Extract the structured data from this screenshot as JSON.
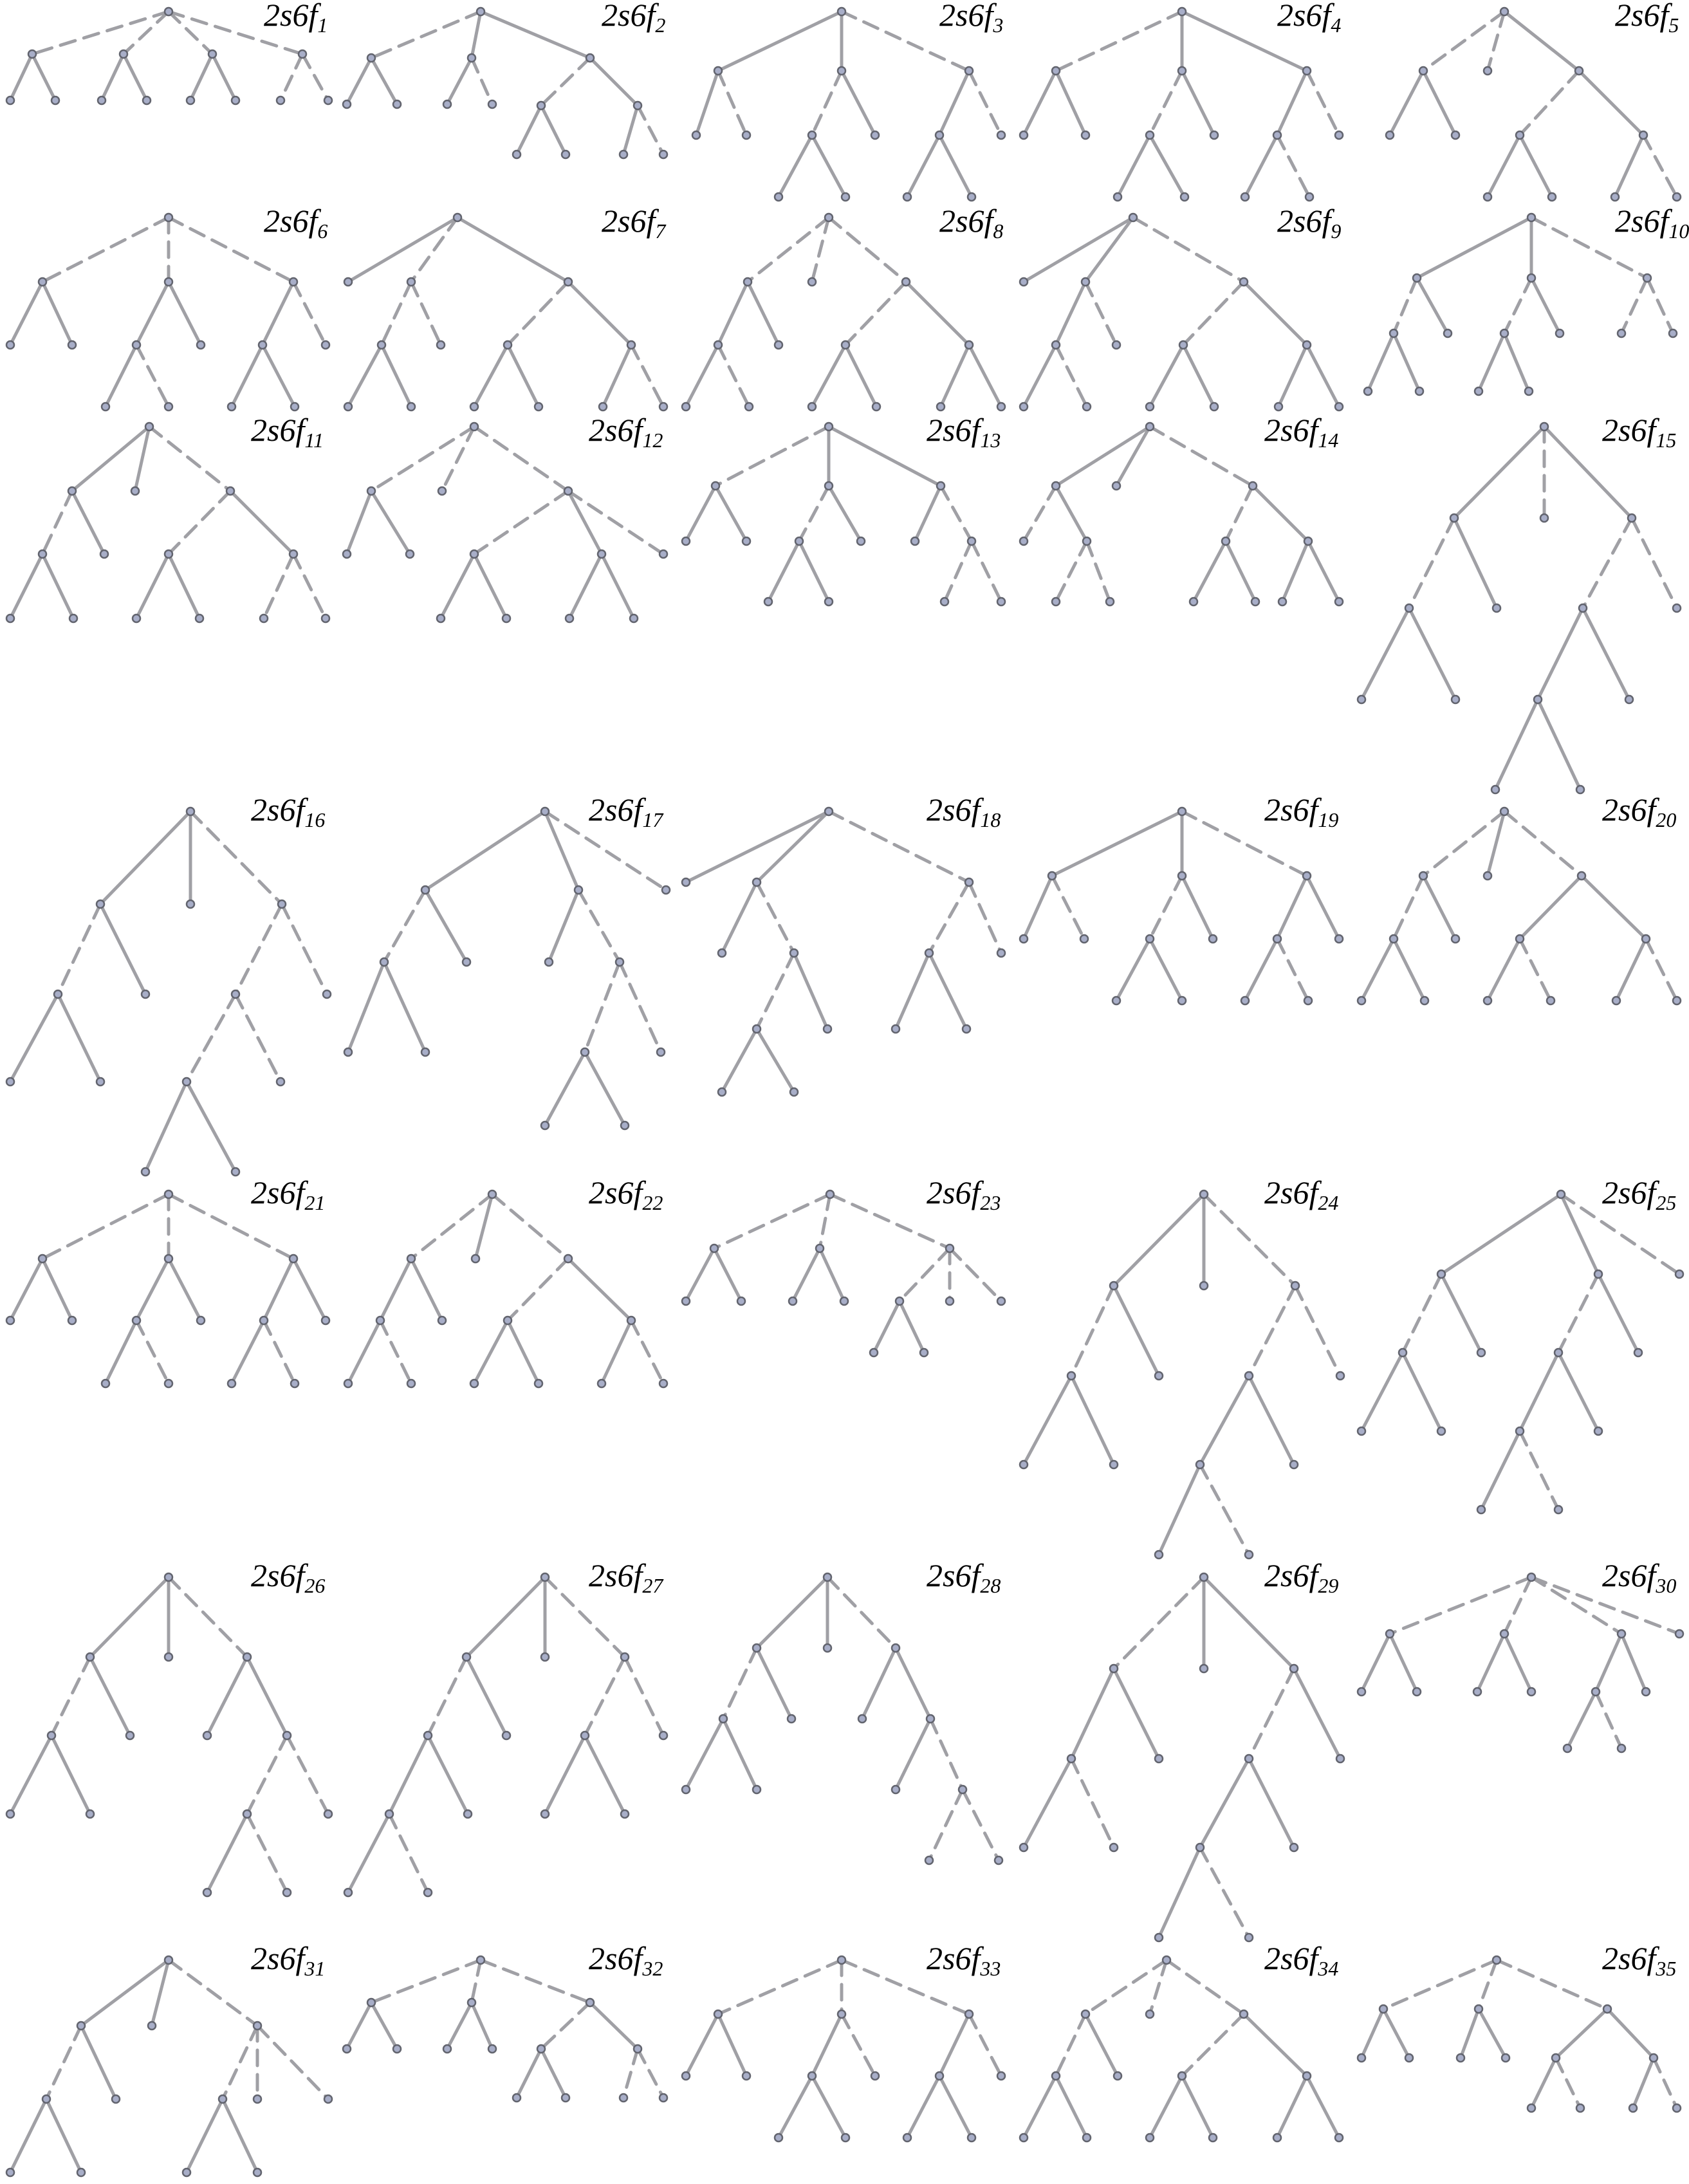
{
  "labels": [
    {
      "name": "2s6f",
      "index": "1"
    },
    {
      "name": "2s6f",
      "index": "2"
    },
    {
      "name": "2s6f",
      "index": "3"
    },
    {
      "name": "2s6f",
      "index": "4"
    },
    {
      "name": "2s6f",
      "index": "5"
    },
    {
      "name": "2s6f",
      "index": "6"
    },
    {
      "name": "2s6f",
      "index": "7"
    },
    {
      "name": "2s6f",
      "index": "8"
    },
    {
      "name": "2s6f",
      "index": "9"
    },
    {
      "name": "2s6f",
      "index": "10"
    },
    {
      "name": "2s6f",
      "index": "11"
    },
    {
      "name": "2s6f",
      "index": "12"
    },
    {
      "name": "2s6f",
      "index": "13"
    },
    {
      "name": "2s6f",
      "index": "14"
    },
    {
      "name": "2s6f",
      "index": "15"
    },
    {
      "name": "2s6f",
      "index": "16"
    },
    {
      "name": "2s6f",
      "index": "17"
    },
    {
      "name": "2s6f",
      "index": "18"
    },
    {
      "name": "2s6f",
      "index": "19"
    },
    {
      "name": "2s6f",
      "index": "20"
    },
    {
      "name": "2s6f",
      "index": "21"
    },
    {
      "name": "2s6f",
      "index": "22"
    },
    {
      "name": "2s6f",
      "index": "23"
    },
    {
      "name": "2s6f",
      "index": "24"
    },
    {
      "name": "2s6f",
      "index": "25"
    },
    {
      "name": "2s6f",
      "index": "26"
    },
    {
      "name": "2s6f",
      "index": "27"
    },
    {
      "name": "2s6f",
      "index": "28"
    },
    {
      "name": "2s6f",
      "index": "29"
    },
    {
      "name": "2s6f",
      "index": "30"
    },
    {
      "name": "2s6f",
      "index": "31"
    },
    {
      "name": "2s6f",
      "index": "32"
    },
    {
      "name": "2s6f",
      "index": "33"
    },
    {
      "name": "2s6f",
      "index": "34"
    },
    {
      "name": "2s6f",
      "index": "35"
    }
  ],
  "colors": {
    "edge": "#a0a0a5",
    "node_fill": "#a8aec8",
    "node_stroke": "#62646e",
    "label": "#000000"
  }
}
